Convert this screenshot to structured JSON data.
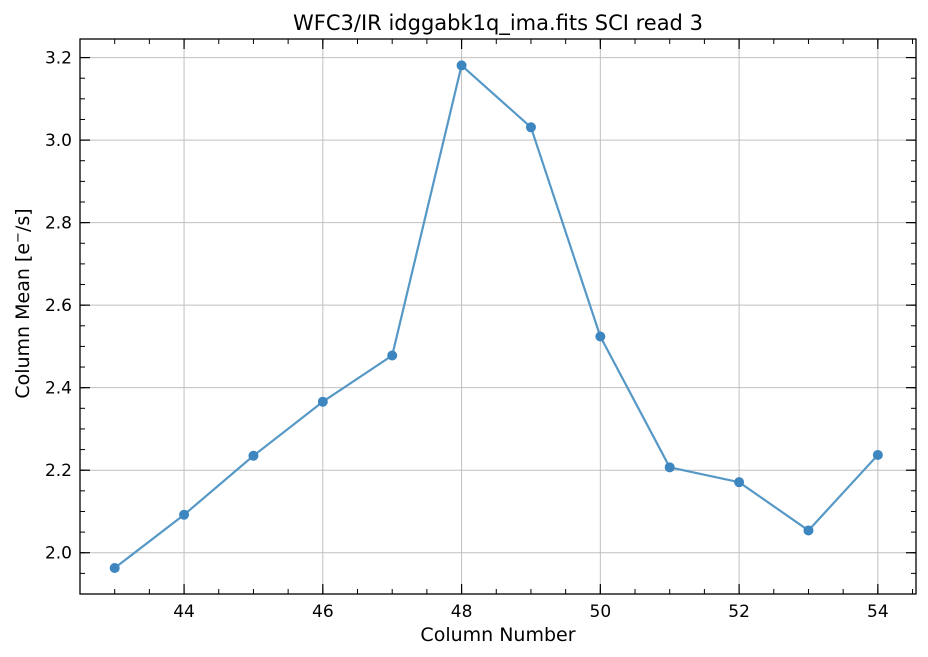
{
  "chart_data": {
    "type": "line",
    "title": "WFC3/IR idggabk1q_ima.fits SCI read 3",
    "xlabel": "Column Number",
    "ylabel_prefix": "Column Mean [e",
    "ylabel_sup": "−",
    "ylabel_suffix": "/s]",
    "x": [
      43,
      44,
      45,
      46,
      47,
      48,
      49,
      50,
      51,
      52,
      53,
      54
    ],
    "y": [
      1.963,
      2.092,
      2.235,
      2.366,
      2.478,
      3.181,
      3.031,
      2.524,
      2.207,
      2.171,
      2.054,
      2.237
    ],
    "xlim": [
      42.5,
      54.55
    ],
    "ylim": [
      1.9,
      3.245
    ],
    "xticks": [
      44,
      46,
      48,
      50,
      52,
      54
    ],
    "xtick_labels": [
      "44",
      "46",
      "48",
      "50",
      "52",
      "54"
    ],
    "xminor_step": 0.5,
    "yticks": [
      2.0,
      2.2,
      2.4,
      2.6,
      2.8,
      3.0,
      3.2
    ],
    "ytick_labels": [
      "2.0",
      "2.2",
      "2.4",
      "2.6",
      "2.8",
      "3.0",
      "3.2"
    ],
    "yminor_step": 0.05,
    "grid": true,
    "line_color": "#5698c6",
    "marker_color": "#3d86bf",
    "grid_color": "#bfbfbf"
  }
}
